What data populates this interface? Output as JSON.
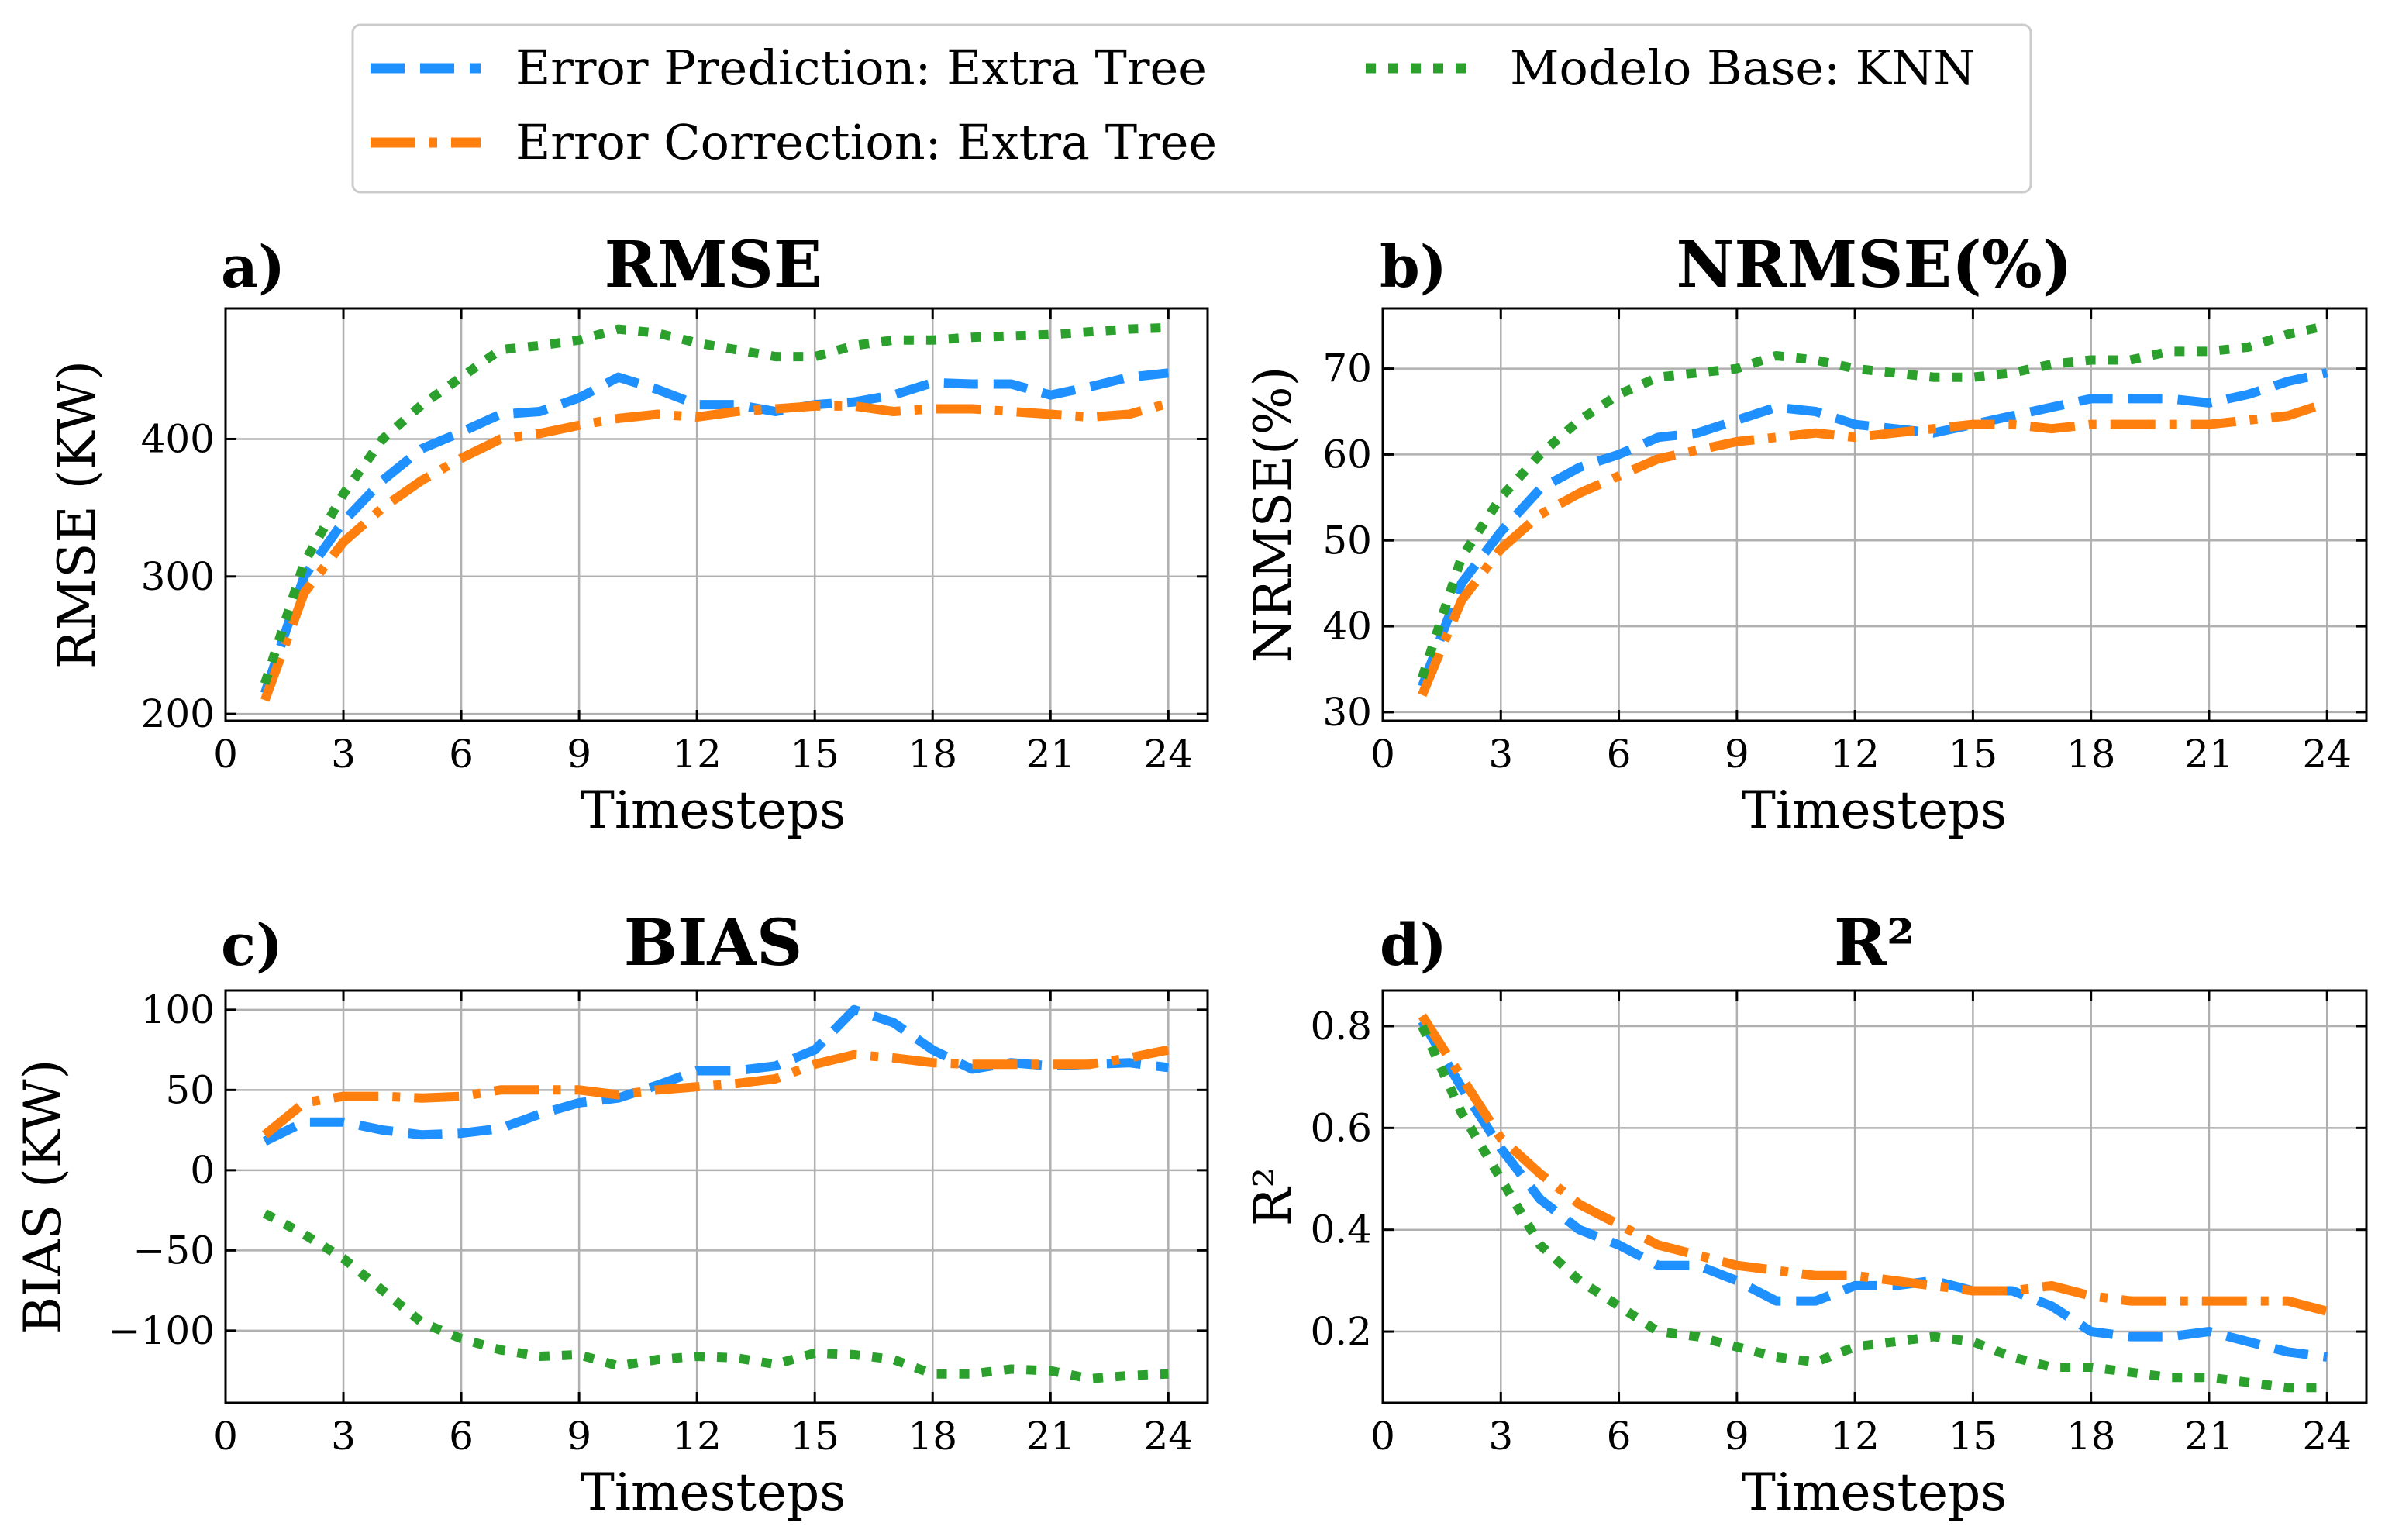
{
  "colors": {
    "error_prediction": "#1E90FF",
    "error_correction": "#FF7F0E",
    "modelo_base": "#2CA02C"
  },
  "legend": {
    "items": [
      {
        "key": "error_prediction",
        "label": "Error Prediction: Extra Tree",
        "style": "dashed"
      },
      {
        "key": "error_correction",
        "label": "Error Correction: Extra Tree",
        "style": "dashdot"
      },
      {
        "key": "modelo_base",
        "label": "Modelo Base: KNN",
        "style": "dotted"
      }
    ]
  },
  "chart_data": [
    {
      "type": "line",
      "panel": "a)",
      "title": "RMSE",
      "xlabel": "Timesteps",
      "ylabel": "RMSE (KW)",
      "xlim": [
        0,
        25
      ],
      "ylim": [
        195,
        495
      ],
      "xticks": [
        0,
        3,
        6,
        9,
        12,
        15,
        18,
        21,
        24
      ],
      "yticks": [
        200,
        300,
        400
      ],
      "ytick_labels": [
        "200",
        "300",
        "400"
      ],
      "grid": true,
      "x": [
        1,
        2,
        3,
        4,
        5,
        6,
        7,
        8,
        9,
        10,
        11,
        12,
        13,
        14,
        15,
        16,
        17,
        18,
        19,
        20,
        21,
        22,
        23,
        24
      ],
      "series": [
        {
          "name": "Error Prediction: Extra Tree",
          "key": "error_prediction",
          "values": [
            215,
            300,
            340,
            370,
            393,
            405,
            418,
            420,
            430,
            445,
            436,
            425,
            425,
            420,
            425,
            427,
            432,
            441,
            440,
            440,
            432,
            438,
            445,
            448
          ]
        },
        {
          "name": "Error Correction: Extra Tree",
          "key": "error_correction",
          "values": [
            210,
            288,
            325,
            350,
            370,
            386,
            400,
            404,
            410,
            415,
            418,
            416,
            420,
            422,
            424,
            424,
            420,
            422,
            422,
            420,
            418,
            416,
            418,
            426
          ]
        },
        {
          "name": "Modelo Base: KNN",
          "key": "modelo_base",
          "values": [
            222,
            310,
            360,
            400,
            425,
            445,
            465,
            468,
            472,
            480,
            477,
            470,
            465,
            460,
            460,
            468,
            472,
            472,
            474,
            475,
            476,
            478,
            480,
            481
          ]
        }
      ]
    },
    {
      "type": "line",
      "panel": "b)",
      "title": "NRMSE(%)",
      "xlabel": "Timesteps",
      "ylabel": "NRMSE(%)",
      "xlim": [
        0,
        25
      ],
      "ylim": [
        29,
        77
      ],
      "xticks": [
        0,
        3,
        6,
        9,
        12,
        15,
        18,
        21,
        24
      ],
      "yticks": [
        30,
        40,
        50,
        60,
        70
      ],
      "ytick_labels": [
        "30",
        "40",
        "50",
        "60",
        "70"
      ],
      "grid": true,
      "x": [
        1,
        2,
        3,
        4,
        5,
        6,
        7,
        8,
        9,
        10,
        11,
        12,
        13,
        14,
        15,
        16,
        17,
        18,
        19,
        20,
        21,
        22,
        23,
        24
      ],
      "series": [
        {
          "name": "Error Prediction: Extra Tree",
          "key": "error_prediction",
          "values": [
            33,
            45,
            51,
            56,
            58.5,
            60,
            62,
            62.5,
            64,
            65.5,
            65,
            63.5,
            63,
            62.5,
            63.5,
            64.5,
            65.5,
            66.5,
            66.5,
            66.5,
            66,
            67,
            68.5,
            69.5
          ]
        },
        {
          "name": "Error Correction: Extra Tree",
          "key": "error_correction",
          "values": [
            32,
            43,
            49,
            53,
            55.5,
            57.5,
            59.5,
            60.5,
            61.5,
            62,
            62.5,
            62,
            62.5,
            63,
            63.5,
            63.5,
            63,
            63.5,
            63.5,
            63.5,
            63.5,
            64,
            64.5,
            66
          ]
        },
        {
          "name": "Modelo Base: KNN",
          "key": "modelo_base",
          "values": [
            34,
            48,
            55,
            60,
            64,
            67,
            69,
            69.5,
            70,
            71.5,
            71,
            70,
            69.5,
            69,
            69,
            69.5,
            70.5,
            71,
            71,
            72,
            72,
            72.5,
            74,
            75
          ]
        }
      ]
    },
    {
      "type": "line",
      "panel": "c)",
      "title": "BIAS",
      "xlabel": "Timesteps",
      "ylabel": "BIAS (KW)",
      "xlim": [
        0,
        25
      ],
      "ylim": [
        -145,
        112
      ],
      "xticks": [
        0,
        3,
        6,
        9,
        12,
        15,
        18,
        21,
        24
      ],
      "yticks": [
        -100,
        -50,
        0,
        50,
        100
      ],
      "ytick_labels": [
        "−100",
        "−50",
        "0",
        "50",
        "100"
      ],
      "grid": true,
      "x": [
        1,
        2,
        3,
        4,
        5,
        6,
        7,
        8,
        9,
        10,
        11,
        12,
        13,
        14,
        15,
        16,
        17,
        18,
        19,
        20,
        21,
        22,
        23,
        24
      ],
      "series": [
        {
          "name": "Error Prediction: Extra Tree",
          "key": "error_prediction",
          "values": [
            18,
            30,
            30,
            25,
            22,
            23,
            26,
            35,
            42,
            45,
            53,
            62,
            62,
            65,
            75,
            100,
            92,
            75,
            63,
            67,
            65,
            66,
            67,
            64
          ]
        },
        {
          "name": "Error Correction: Extra Tree",
          "key": "error_correction",
          "values": [
            22,
            42,
            46,
            46,
            45,
            46,
            50,
            50,
            50,
            47,
            50,
            52,
            54,
            57,
            66,
            72,
            70,
            67,
            66,
            66,
            66,
            66,
            70,
            75
          ]
        },
        {
          "name": "Modelo Base: KNN",
          "key": "modelo_base",
          "values": [
            -27,
            -40,
            -55,
            -75,
            -95,
            -105,
            -112,
            -116,
            -115,
            -122,
            -118,
            -116,
            -117,
            -121,
            -114,
            -115,
            -118,
            -127,
            -127,
            -124,
            -125,
            -130,
            -128,
            -127
          ]
        }
      ]
    },
    {
      "type": "line",
      "panel": "d)",
      "title": "R²",
      "xlabel": "Timesteps",
      "ylabel": "R²",
      "xlim": [
        0,
        25
      ],
      "ylim": [
        0.06,
        0.87
      ],
      "xticks": [
        0,
        3,
        6,
        9,
        12,
        15,
        18,
        21,
        24
      ],
      "yticks": [
        0.2,
        0.4,
        0.6,
        0.8
      ],
      "ytick_labels": [
        "0.2",
        "0.4",
        "0.6",
        "0.8"
      ],
      "grid": true,
      "x": [
        1,
        2,
        3,
        4,
        5,
        6,
        7,
        8,
        9,
        10,
        11,
        12,
        13,
        14,
        15,
        16,
        17,
        18,
        19,
        20,
        21,
        22,
        23,
        24
      ],
      "series": [
        {
          "name": "Error Prediction: Extra Tree",
          "key": "error_prediction",
          "values": [
            0.81,
            0.68,
            0.56,
            0.46,
            0.4,
            0.37,
            0.33,
            0.33,
            0.3,
            0.26,
            0.26,
            0.29,
            0.29,
            0.3,
            0.28,
            0.28,
            0.25,
            0.2,
            0.19,
            0.19,
            0.2,
            0.18,
            0.16,
            0.15
          ]
        },
        {
          "name": "Error Correction: Extra Tree",
          "key": "error_correction",
          "values": [
            0.82,
            0.7,
            0.58,
            0.51,
            0.45,
            0.41,
            0.37,
            0.35,
            0.33,
            0.32,
            0.31,
            0.31,
            0.3,
            0.29,
            0.28,
            0.28,
            0.29,
            0.27,
            0.26,
            0.26,
            0.26,
            0.26,
            0.26,
            0.24
          ]
        },
        {
          "name": "Modelo Base: KNN",
          "key": "modelo_base",
          "values": [
            0.8,
            0.63,
            0.5,
            0.37,
            0.3,
            0.25,
            0.2,
            0.19,
            0.17,
            0.15,
            0.14,
            0.17,
            0.18,
            0.19,
            0.18,
            0.15,
            0.13,
            0.13,
            0.12,
            0.11,
            0.11,
            0.1,
            0.09,
            0.09
          ]
        }
      ]
    }
  ]
}
